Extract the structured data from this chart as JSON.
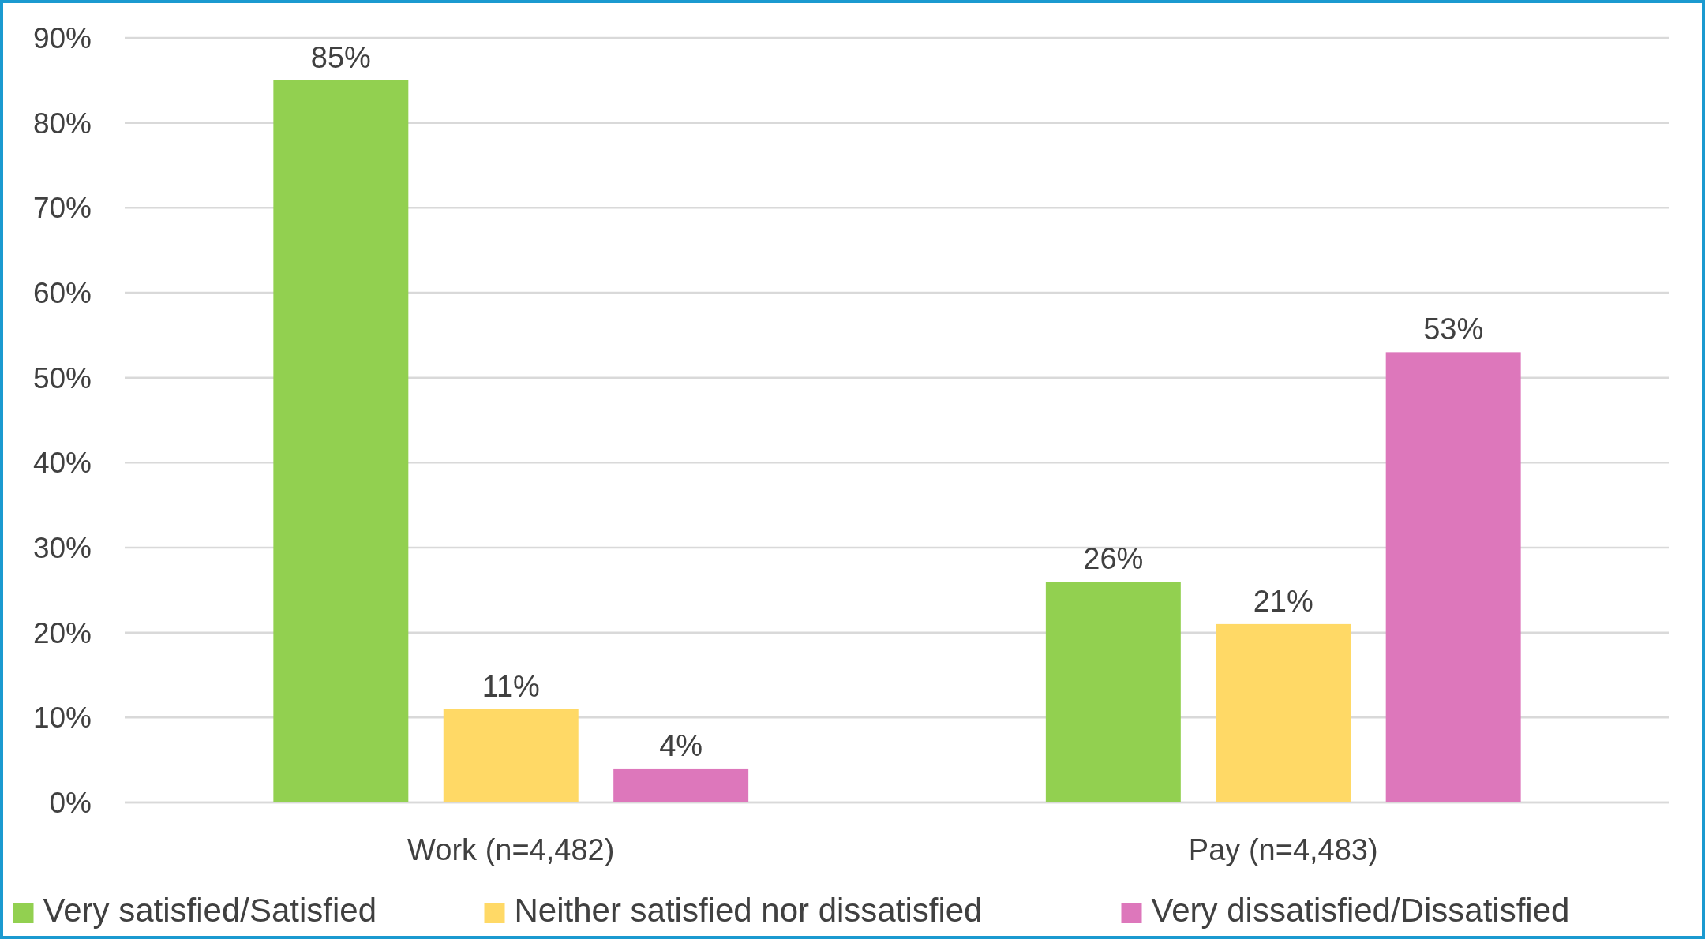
{
  "chart_data": {
    "type": "bar",
    "categories": [
      "Work (n=4,482)",
      "Pay (n=4,483)"
    ],
    "series": [
      {
        "name": "Very satisfied/Satisfied",
        "color": "#92d050",
        "values": [
          85,
          26
        ],
        "value_labels": [
          "85%",
          "26%"
        ]
      },
      {
        "name": "Neither satisfied nor dissatisfied",
        "color": "#ffd966",
        "values": [
          11,
          21
        ],
        "value_labels": [
          "11%",
          "21%"
        ]
      },
      {
        "name": "Very dissatisfied/Dissatisfied",
        "color": "#dd77bb",
        "values": [
          4,
          53
        ],
        "value_labels": [
          "4%",
          "53%"
        ]
      }
    ],
    "ylim": [
      0,
      90
    ],
    "yticks": [
      {
        "value": 0,
        "label": "0%"
      },
      {
        "value": 10,
        "label": "10%"
      },
      {
        "value": 20,
        "label": "20%"
      },
      {
        "value": 30,
        "label": "30%"
      },
      {
        "value": 40,
        "label": "40%"
      },
      {
        "value": 50,
        "label": "50%"
      },
      {
        "value": 60,
        "label": "60%"
      },
      {
        "value": 70,
        "label": "70%"
      },
      {
        "value": 80,
        "label": "80%"
      },
      {
        "value": 90,
        "label": "90%"
      }
    ],
    "grid": "y",
    "legend": "bottom"
  }
}
